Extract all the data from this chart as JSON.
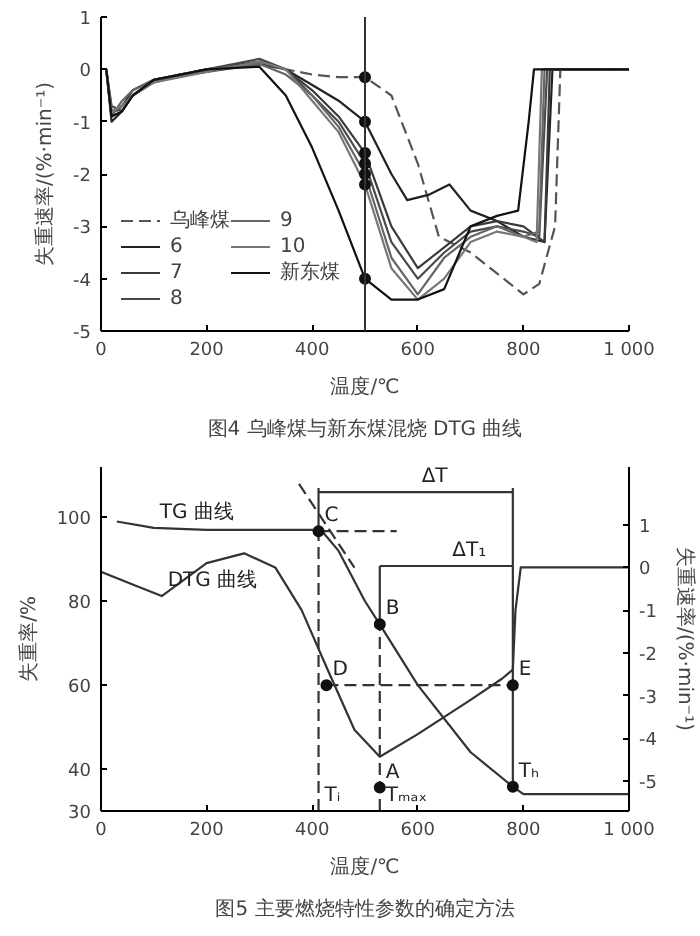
{
  "chart_data": [
    {
      "type": "line",
      "xlabel": "温度/℃",
      "ylabel": "失重速率/(%·min⁻¹)",
      "xlim": [
        0,
        1000
      ],
      "ylim": [
        -5,
        1
      ],
      "xticks": [
        0,
        200,
        400,
        600,
        800,
        {
          "value": 1000,
          "label": "1 000"
        }
      ],
      "yticks": [
        -5,
        -4,
        -3,
        -2,
        -1,
        0,
        1
      ],
      "legend": "bottom left",
      "grid": false,
      "annotations": [
        "图4 乌峰煤与新东煤混烧 DTG 曲线"
      ],
      "ref_lines": [
        {
          "axis": "x",
          "value": 500,
          "label": null,
          "color": "#333333"
        }
      ],
      "series": [
        {
          "name": "乌峰煤",
          "color": "#555555",
          "line_style": "dashed",
          "x": [
            10,
            20,
            40,
            60,
            100,
            200,
            300,
            350,
            400,
            450,
            500,
            550,
            600,
            640,
            700,
            750,
            800,
            830,
            860,
            870,
            900,
            1000
          ],
          "values": [
            0,
            -0.9,
            -0.7,
            -0.5,
            -0.2,
            0,
            0.1,
            0,
            -0.1,
            -0.15,
            -0.15,
            -0.5,
            -1.8,
            -3.2,
            -3.5,
            -3.9,
            -4.3,
            -4.1,
            -3.0,
            0,
            0,
            0
          ]
        },
        {
          "name": "6",
          "color": "#222222",
          "x": [
            10,
            20,
            40,
            60,
            100,
            200,
            300,
            350,
            400,
            450,
            500,
            550,
            580,
            620,
            660,
            700,
            750,
            800,
            840,
            855,
            900,
            1000
          ],
          "values": [
            0,
            -1.0,
            -0.8,
            -0.5,
            -0.25,
            0,
            0.15,
            0,
            -0.3,
            -0.6,
            -1.0,
            -2.0,
            -2.5,
            -2.4,
            -2.2,
            -2.7,
            -2.9,
            -3.2,
            -3.3,
            0,
            0,
            0
          ]
        },
        {
          "name": "7",
          "color": "#3a3a3a",
          "x": [
            10,
            20,
            40,
            60,
            100,
            200,
            300,
            350,
            400,
            450,
            500,
            550,
            600,
            650,
            700,
            750,
            800,
            840,
            850,
            900,
            1000
          ],
          "values": [
            0,
            -0.8,
            -0.7,
            -0.4,
            -0.2,
            -0.05,
            0.1,
            0,
            -0.4,
            -0.9,
            -1.6,
            -3.0,
            -3.8,
            -3.4,
            -3.0,
            -2.9,
            -3.0,
            -3.3,
            0,
            0,
            0
          ]
        },
        {
          "name": "8",
          "color": "#4a4a4a",
          "x": [
            10,
            20,
            40,
            60,
            100,
            200,
            300,
            350,
            400,
            450,
            500,
            550,
            600,
            650,
            700,
            750,
            800,
            830,
            845,
            900,
            1000
          ],
          "values": [
            0,
            -0.7,
            -0.8,
            -0.5,
            -0.2,
            0,
            0.2,
            0,
            -0.5,
            -1.0,
            -1.8,
            -3.3,
            -4.0,
            -3.5,
            -3.1,
            -3.0,
            -3.1,
            -3.2,
            0,
            0,
            0
          ]
        },
        {
          "name": "9",
          "color": "#666666",
          "x": [
            10,
            20,
            40,
            60,
            100,
            200,
            300,
            350,
            400,
            450,
            500,
            550,
            600,
            650,
            700,
            750,
            800,
            830,
            840,
            900,
            1000
          ],
          "values": [
            0,
            -0.9,
            -0.6,
            -0.4,
            -0.2,
            0,
            0.1,
            -0.1,
            -0.5,
            -1.1,
            -2.0,
            -3.6,
            -4.3,
            -3.6,
            -3.2,
            -3.0,
            -3.2,
            -3.1,
            0,
            0,
            0
          ]
        },
        {
          "name": "10",
          "color": "#777777",
          "x": [
            10,
            20,
            40,
            60,
            100,
            200,
            300,
            350,
            400,
            450,
            500,
            550,
            600,
            650,
            700,
            750,
            800,
            825,
            835,
            900,
            1000
          ],
          "values": [
            0,
            -0.8,
            -0.7,
            -0.5,
            -0.25,
            -0.05,
            0.15,
            0,
            -0.6,
            -1.2,
            -2.2,
            -3.8,
            -4.4,
            -4.0,
            -3.3,
            -3.1,
            -3.2,
            -3.3,
            0,
            0,
            0
          ]
        },
        {
          "name": "新东煤",
          "color": "#111111",
          "x": [
            10,
            20,
            40,
            60,
            100,
            200,
            300,
            350,
            400,
            450,
            500,
            550,
            600,
            650,
            700,
            750,
            790,
            810,
            820,
            900,
            1000
          ],
          "values": [
            0,
            -0.9,
            -0.8,
            -0.5,
            -0.2,
            0,
            0.05,
            -0.5,
            -1.5,
            -2.7,
            -4.0,
            -4.4,
            -4.4,
            -4.2,
            -3.0,
            -2.8,
            -2.7,
            -1.0,
            0,
            0,
            0
          ]
        },
        {
          "type": "scatter",
          "marker": "circle",
          "color": "#111111",
          "x": [
            500,
            500,
            500,
            500,
            500,
            500,
            500
          ],
          "values": [
            -0.15,
            -1.0,
            -1.6,
            -1.8,
            -2.0,
            -2.2,
            -4.0
          ]
        }
      ]
    },
    {
      "type": "line",
      "xlabel": "温度/℃",
      "ylabel": "失重率/%",
      "y2label": "失重速率/(%·min⁻¹)",
      "xlim": [
        0,
        1000
      ],
      "ylim": [
        30,
        112
      ],
      "y2lim": [
        -5.7,
        2.35
      ],
      "xticks": [
        0,
        200,
        400,
        600,
        800,
        {
          "value": 1000,
          "label": "1 000"
        }
      ],
      "yticks": [
        30,
        40,
        60,
        80,
        100
      ],
      "y2ticks": [
        -5,
        -4,
        -3,
        -2,
        -1,
        0,
        1
      ],
      "grid": false,
      "annotations": [
        "图5 主要燃烧特性参数的确定方法",
        {
          "text": "TG 曲线",
          "x": 100,
          "y": 97.5
        },
        {
          "text": "DTG 曲线",
          "x": 115,
          "y": 81.2
        },
        {
          "text": "C",
          "x": 412,
          "y": 96.7
        },
        {
          "text": "B",
          "x": 528,
          "y": 74.5
        },
        {
          "text": "D",
          "x": 427,
          "y": 60
        },
        {
          "text": "E",
          "x": 780,
          "y": 60
        },
        {
          "text": "A",
          "x": 528,
          "y": 35.6
        },
        {
          "text": "Tᵢ",
          "x": 412,
          "y": 30
        },
        {
          "text": "Tₘₐₓ",
          "x": 528,
          "y": 30
        },
        {
          "text": "Tₕ",
          "x": 780,
          "y": 35.8
        },
        {
          "text": "ΔT",
          "x": 596,
          "y": 106
        },
        {
          "text": "ΔT₁",
          "x": 654,
          "y": 88.4
        }
      ],
      "series": [
        {
          "color": "#333333",
          "x": [
            30,
            100,
            200,
            300,
            400,
            420,
            450,
            500,
            528,
            600,
            700,
            780,
            800,
            1000
          ],
          "values": [
            99,
            97.5,
            97,
            97,
            97,
            96.5,
            92,
            80,
            74.5,
            60,
            44,
            35.8,
            34,
            34
          ]
        },
        {
          "color": "#333333",
          "axis": "y2",
          "x": [
            0,
            60,
            115,
            200,
            271,
            330,
            380,
            427,
            480,
            528,
            600,
            700,
            760,
            780,
            785,
            795,
            1000
          ],
          "values": [
            -0.1,
            -0.4,
            -0.67,
            0.1,
            0.33,
            0,
            -1.0,
            -2.33,
            -3.8,
            -4.43,
            -3.9,
            -3.1,
            -2.6,
            -2.39,
            -1.0,
            0,
            0
          ]
        },
        {
          "color": "#333333",
          "line_style": "dashed",
          "x": [
            412,
            412
          ],
          "values": [
            30,
            96.7
          ]
        },
        {
          "color": "#333333",
          "line_style": "dashed",
          "x": [
            528,
            528
          ],
          "values": [
            30,
            74.5
          ]
        },
        {
          "color": "#333333",
          "line_style": "dashed",
          "x": [
            427,
            780
          ],
          "values": [
            60,
            60
          ]
        },
        {
          "color": "#333333",
          "line_style": "dashed",
          "x": [
            412,
            560
          ],
          "values": [
            96.7,
            96.7
          ]
        },
        {
          "color": "#333333",
          "line_style": "dashed",
          "x": [
            375,
            480
          ],
          "values": [
            108,
            88
          ]
        },
        {
          "color": "#333333",
          "x": [
            412,
            596,
            780
          ],
          "values": [
            106,
            106,
            106
          ]
        },
        {
          "color": "#333333",
          "x": [
            528,
            654,
            780
          ],
          "values": [
            88.4,
            88.4,
            88.4
          ]
        },
        {
          "color": "#333333",
          "x": [
            412,
            412
          ],
          "values": [
            96.7,
            107
          ]
        },
        {
          "color": "#333333",
          "x": [
            528,
            528
          ],
          "values": [
            74.5,
            88.4
          ]
        },
        {
          "color": "#333333",
          "x": [
            780,
            780
          ],
          "values": [
            35.8,
            107
          ]
        },
        {
          "type": "scatter",
          "marker": "circle",
          "color": "#111111",
          "x": [
            412,
            528,
            427,
            780,
            528,
            780
          ],
          "values": [
            96.7,
            74.5,
            60,
            60,
            35.6,
            35.8
          ]
        }
      ]
    }
  ]
}
